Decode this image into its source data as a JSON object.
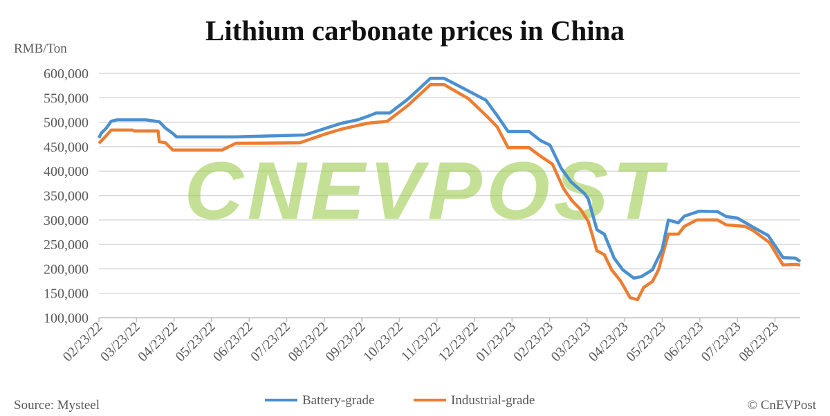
{
  "chart_data": {
    "type": "line",
    "title": "Lithium carbonate prices in China",
    "ylabel": "RMB/Ton",
    "ylim": [
      100000,
      600000
    ],
    "yticks": [
      "100,000",
      "150,000",
      "200,000",
      "250,000",
      "300,000",
      "350,000",
      "400,000",
      "450,000",
      "500,000",
      "550,000",
      "600,000"
    ],
    "xlim": [
      "2022-02-23",
      "2023-09-15"
    ],
    "xticks": [
      "02/23/22",
      "03/23/22",
      "04/23/22",
      "05/23/22",
      "06/23/22",
      "07/23/22",
      "08/23/22",
      "09/23/22",
      "10/23/22",
      "11/23/22",
      "12/23/22",
      "01/23/23",
      "02/23/23",
      "03/23/23",
      "04/23/23",
      "05/23/23",
      "06/23/23",
      "07/23/23",
      "08/23/23"
    ],
    "grid": true,
    "legend_position": "bottom",
    "source": "Source: Mysteel",
    "credit": "© CnEVPost",
    "watermark": "CNEVPOST",
    "series": [
      {
        "name": "Battery-grade",
        "color": "#4a90d0",
        "points": [
          [
            "2022-02-23",
            468000
          ],
          [
            "2022-02-25",
            478000
          ],
          [
            "2022-03-01",
            488000
          ],
          [
            "2022-03-05",
            502000
          ],
          [
            "2022-03-10",
            505000
          ],
          [
            "2022-04-02",
            505000
          ],
          [
            "2022-04-13",
            501000
          ],
          [
            "2022-04-18",
            488000
          ],
          [
            "2022-04-24",
            477000
          ],
          [
            "2022-04-27",
            470000
          ],
          [
            "2022-06-14",
            470000
          ],
          [
            "2022-08-09",
            474000
          ],
          [
            "2022-08-30",
            491000
          ],
          [
            "2022-09-08",
            498000
          ],
          [
            "2022-09-21",
            505000
          ],
          [
            "2022-09-29",
            512000
          ],
          [
            "2022-10-06",
            519000
          ],
          [
            "2022-10-17",
            519000
          ],
          [
            "2022-11-01",
            548000
          ],
          [
            "2022-11-19",
            590000
          ],
          [
            "2022-11-30",
            590000
          ],
          [
            "2022-12-16",
            569000
          ],
          [
            "2023-01-03",
            545000
          ],
          [
            "2023-01-12",
            514000
          ],
          [
            "2023-01-21",
            481000
          ],
          [
            "2023-02-07",
            481000
          ],
          [
            "2023-02-16",
            463000
          ],
          [
            "2023-02-24",
            453000
          ],
          [
            "2023-03-05",
            406000
          ],
          [
            "2023-03-13",
            378000
          ],
          [
            "2023-03-24",
            354000
          ],
          [
            "2023-03-27",
            343000
          ],
          [
            "2023-04-03",
            280000
          ],
          [
            "2023-04-09",
            271000
          ],
          [
            "2023-04-17",
            222000
          ],
          [
            "2023-04-24",
            198000
          ],
          [
            "2023-05-03",
            181000
          ],
          [
            "2023-05-09",
            184000
          ],
          [
            "2023-05-18",
            198000
          ],
          [
            "2023-05-26",
            240000
          ],
          [
            "2023-05-31",
            300000
          ],
          [
            "2023-06-08",
            294000
          ],
          [
            "2023-06-13",
            308000
          ],
          [
            "2023-06-25",
            318000
          ],
          [
            "2023-07-10",
            317000
          ],
          [
            "2023-07-17",
            307000
          ],
          [
            "2023-07-26",
            304000
          ],
          [
            "2023-08-08",
            285000
          ],
          [
            "2023-08-20",
            268000
          ],
          [
            "2023-09-01",
            223000
          ],
          [
            "2023-09-11",
            222000
          ],
          [
            "2023-09-15",
            215000
          ]
        ]
      },
      {
        "name": "Industrial-grade",
        "color": "#ed7d31",
        "points": [
          [
            "2022-02-23",
            457000
          ],
          [
            "2022-02-27",
            467000
          ],
          [
            "2022-03-05",
            484000
          ],
          [
            "2022-03-22",
            484000
          ],
          [
            "2022-03-24",
            482000
          ],
          [
            "2022-04-12",
            482000
          ],
          [
            "2022-04-13",
            460000
          ],
          [
            "2022-04-18",
            458000
          ],
          [
            "2022-04-24",
            443000
          ],
          [
            "2022-06-03",
            443000
          ],
          [
            "2022-06-14",
            457000
          ],
          [
            "2022-08-05",
            458000
          ],
          [
            "2022-08-27",
            477000
          ],
          [
            "2022-09-08",
            486000
          ],
          [
            "2022-09-29",
            498000
          ],
          [
            "2022-10-15",
            502000
          ],
          [
            "2022-11-01",
            535000
          ],
          [
            "2022-11-19",
            577000
          ],
          [
            "2022-11-30",
            577000
          ],
          [
            "2022-12-20",
            548000
          ],
          [
            "2023-01-03",
            514000
          ],
          [
            "2023-01-12",
            491000
          ],
          [
            "2023-01-21",
            448000
          ],
          [
            "2023-02-07",
            448000
          ],
          [
            "2023-02-16",
            431000
          ],
          [
            "2023-02-26",
            414000
          ],
          [
            "2023-03-07",
            364000
          ],
          [
            "2023-03-14",
            339000
          ],
          [
            "2023-03-21",
            321000
          ],
          [
            "2023-03-27",
            297000
          ],
          [
            "2023-04-03",
            237000
          ],
          [
            "2023-04-09",
            229000
          ],
          [
            "2023-04-15",
            198000
          ],
          [
            "2023-04-22",
            176000
          ],
          [
            "2023-04-30",
            141000
          ],
          [
            "2023-05-06",
            137000
          ],
          [
            "2023-05-11",
            162000
          ],
          [
            "2023-05-18",
            174000
          ],
          [
            "2023-05-23",
            198000
          ],
          [
            "2023-05-31",
            271000
          ],
          [
            "2023-06-08",
            271000
          ],
          [
            "2023-06-13",
            287000
          ],
          [
            "2023-06-23",
            300000
          ],
          [
            "2023-07-10",
            300000
          ],
          [
            "2023-07-17",
            290000
          ],
          [
            "2023-08-01",
            287000
          ],
          [
            "2023-08-08",
            278000
          ],
          [
            "2023-08-21",
            254000
          ],
          [
            "2023-09-01",
            208000
          ],
          [
            "2023-09-11",
            209000
          ],
          [
            "2023-09-15",
            208000
          ]
        ]
      }
    ]
  }
}
